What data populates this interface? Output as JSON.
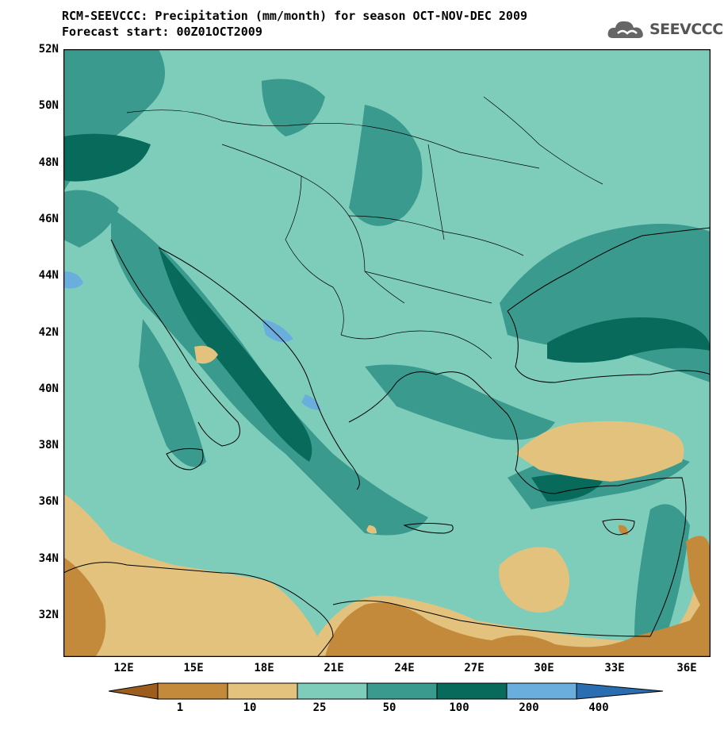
{
  "header": {
    "title_line1": "RCM-SEEVCCC: Precipitation (mm/month) for season OCT-NOV-DEC 2009",
    "title_line2": "Forecast start: 00Z01OCT2009"
  },
  "logo": {
    "text": "SEEVCCC",
    "icon": "cloud-logo-icon"
  },
  "map": {
    "lat_labels": [
      "52N",
      "50N",
      "48N",
      "46N",
      "44N",
      "42N",
      "40N",
      "38N",
      "36N",
      "34N",
      "32N"
    ],
    "lon_labels": [
      "12E",
      "15E",
      "18E",
      "21E",
      "24E",
      "27E",
      "30E",
      "33E",
      "36E"
    ]
  },
  "colorbar": {
    "labels": [
      "1",
      "10",
      "25",
      "50",
      "100",
      "200",
      "400"
    ],
    "colors": [
      "#9c5d1e",
      "#c48a3c",
      "#e3c27e",
      "#7ecdbb",
      "#3a9a8e",
      "#076a5a",
      "#6aaede",
      "#2a6db0"
    ]
  }
}
